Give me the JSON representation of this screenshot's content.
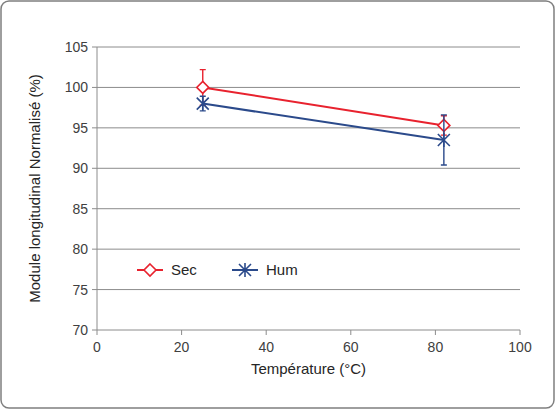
{
  "chart_data": {
    "type": "line",
    "x_label": "Température (°C)",
    "y_label": "Module longitudinal Normalisé (%)",
    "x": [
      25,
      82
    ],
    "series": [
      {
        "name": "Sec",
        "color": "#e8222e",
        "marker": "diamond",
        "values": [
          100,
          95.3
        ],
        "errors": [
          2.2,
          1.2
        ]
      },
      {
        "name": "Hum",
        "color": "#2b4a8b",
        "marker": "star",
        "values": [
          98,
          93.5
        ],
        "errors": [
          0.9,
          3.1
        ]
      }
    ],
    "xlim": [
      0,
      100
    ],
    "xticks": [
      0,
      20,
      40,
      60,
      80,
      100
    ],
    "ylim": [
      70,
      105
    ],
    "yticks": [
      70,
      75,
      80,
      85,
      90,
      95,
      100,
      105
    ],
    "grid": true,
    "legend": "lower left"
  }
}
